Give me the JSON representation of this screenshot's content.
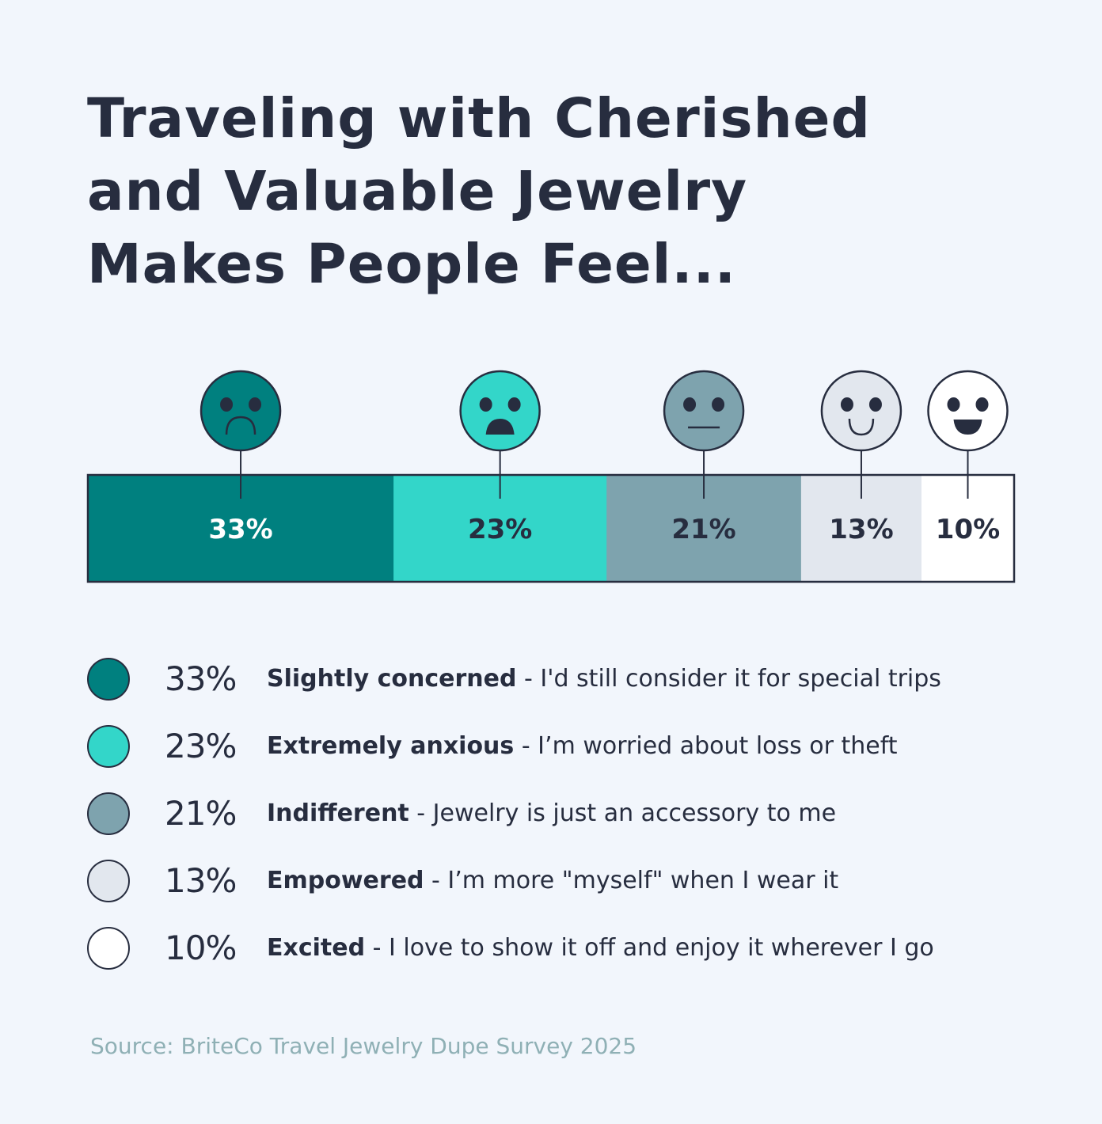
{
  "chart_data": {
    "type": "bar",
    "stacked": true,
    "orientation": "horizontal",
    "title": "Traveling with Cherished\nand Valuable Jewelry\nMakes People Feel...",
    "categories": [
      "Slightly concerned",
      "Extremely anxious",
      "Indifferent",
      "Empowered",
      "Excited"
    ],
    "values": [
      33,
      23,
      21,
      13,
      10
    ],
    "data_labels": [
      "33%",
      "23%",
      "21%",
      "13%",
      "10%"
    ],
    "descriptions": [
      "I'd still consider it for special trips",
      "I’m worried about loss or theft",
      "Jewelry is just an accessory to me",
      "I’m more \"myself\" when I wear it",
      "I love to show it off and enjoy it wherever I go"
    ],
    "colors": [
      "#00807f",
      "#33d6c9",
      "#7ea3ae",
      "#e2e7ee",
      "#ffffff"
    ],
    "label_colors": [
      "#ffffff",
      "#272d3f",
      "#272d3f",
      "#272d3f",
      "#272d3f"
    ],
    "icons": [
      "frown-face-icon",
      "anxious-face-icon",
      "neutral-face-icon",
      "smile-face-icon",
      "grin-face-icon"
    ],
    "legend_placement": "bottom",
    "grid": false
  },
  "separator": "-",
  "source": "Source: BriteCo Travel Jewelry Dupe Survey 2025"
}
